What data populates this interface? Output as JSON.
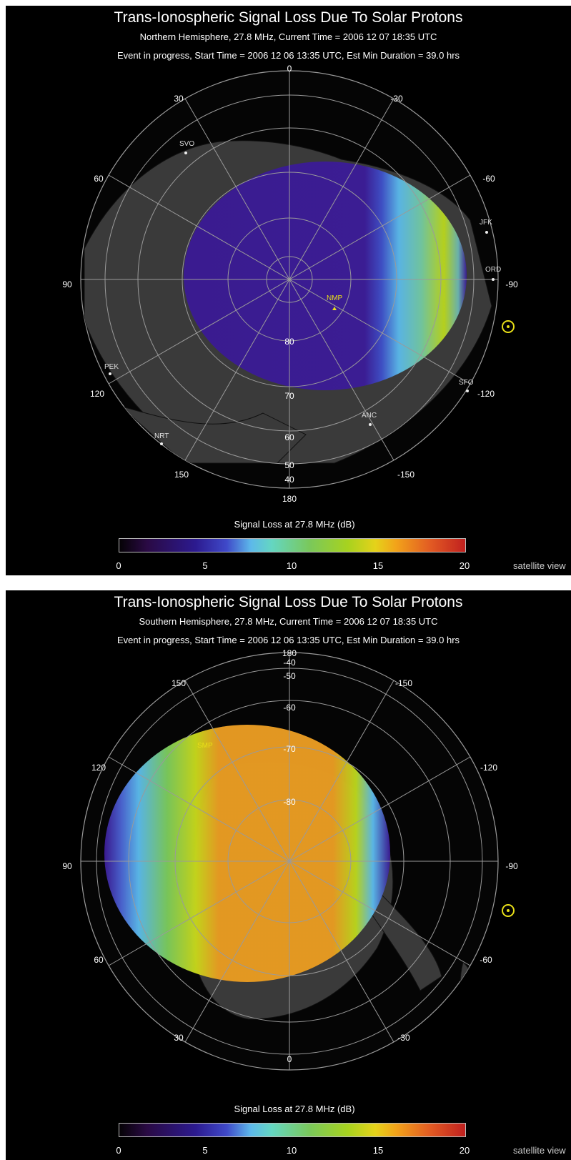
{
  "north": {
    "title": "Trans-Ionospheric Signal Loss Due To Solar Protons",
    "subtitle": "Northern Hemisphere, 27.8 MHz, Current Time = 2006 12 07  18:35 UTC",
    "event_line": "Event in progress, Start Time = 2006 12 06  13:35 UTC, Est Min Duration = 39.0 hrs",
    "longitude_labels": {
      "top": "0",
      "upper_left": "30",
      "upper_right": "-30",
      "left_high": "60",
      "right_high": "-60",
      "left": "90",
      "right": "-90",
      "lower_left": "120",
      "lower_right": "-120",
      "bottom_left": "150",
      "bottom_right": "-150",
      "bottom": "180"
    },
    "latitude_labels": [
      "80",
      "70",
      "60",
      "50",
      "40"
    ],
    "cities": [
      "SVO",
      "JFK",
      "ORD",
      "PEK",
      "SFO",
      "ANC",
      "NRT",
      "NMP"
    ],
    "colorbar_title": "Signal Loss at 27.8 MHz (dB)",
    "colorbar_ticks": [
      "0",
      "5",
      "10",
      "15",
      "20"
    ],
    "view_label": "satellite view",
    "sun_icon": "sun-icon"
  },
  "south": {
    "title": "Trans-Ionospheric Signal Loss Due To Solar Protons",
    "subtitle": "Southern Hemisphere, 27.8 MHz, Current Time = 2006 12 07  18:35 UTC",
    "event_line": "Event in progress, Start Time = 2006 12 06  13:35 UTC, Est Min Duration = 39.0 hrs",
    "longitude_labels": {
      "top": "180",
      "upper_left": "150",
      "upper_right": "-150",
      "left_high": "120",
      "right_high": "-120",
      "left": "90",
      "right": "-90",
      "lower_left": "60",
      "lower_right": "-60",
      "bottom_left": "30",
      "bottom_right": "-30",
      "bottom": "0"
    },
    "latitude_labels": [
      "-40",
      "-50",
      "-60",
      "-70",
      "-80"
    ],
    "cities": [
      "SMP"
    ],
    "colorbar_title": "Signal Loss at 27.8 MHz (dB)",
    "colorbar_ticks": [
      "0",
      "5",
      "10",
      "15",
      "20"
    ],
    "view_label": "satellite view",
    "sun_icon": "sun-icon"
  },
  "colors": {
    "background": "#000000",
    "land": "#3a3a3a",
    "grid": "#9a9a9a",
    "north_fill": "#3a1a92",
    "south_fill": "#e69a22",
    "sun": "#e8df18"
  }
}
